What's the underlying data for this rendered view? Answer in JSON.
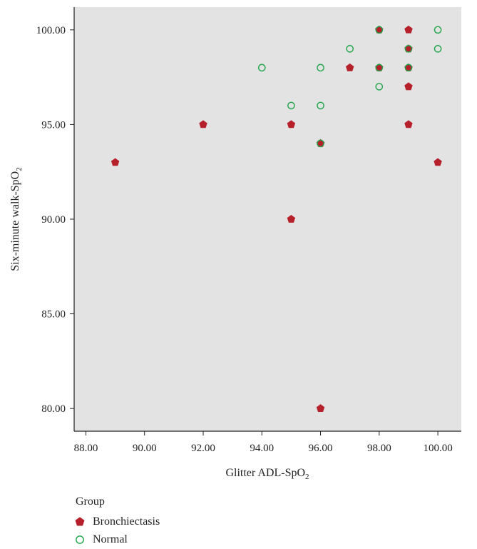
{
  "chart_data": {
    "type": "scatter",
    "xlabel_main": "Glitter ADL-SpO",
    "xlabel_sub": "2",
    "ylabel_main": "Six-minute walk-SpO",
    "ylabel_sub": "2",
    "xlim": [
      87.6,
      100.8
    ],
    "ylim": [
      78.8,
      101.2
    ],
    "x_ticks": [
      "88.00",
      "90.00",
      "92.00",
      "94.00",
      "96.00",
      "98.00",
      "100.00"
    ],
    "y_ticks": [
      "100.00",
      "95.00",
      "90.00",
      "85.00",
      "80.00"
    ],
    "grid": false,
    "legend_placement": "bottom-left",
    "legend_title": "Group",
    "series": [
      {
        "name": "Bronchiectasis",
        "marker": "pentagon",
        "color": "#b5202a",
        "points": [
          [
            89,
            93
          ],
          [
            92,
            95
          ],
          [
            95,
            95
          ],
          [
            95,
            90
          ],
          [
            96,
            94
          ],
          [
            96,
            80
          ],
          [
            97,
            98
          ],
          [
            98,
            100
          ],
          [
            98,
            98
          ],
          [
            99,
            100
          ],
          [
            99,
            99
          ],
          [
            99,
            98
          ],
          [
            99,
            97
          ],
          [
            99,
            95
          ],
          [
            100,
            93
          ]
        ]
      },
      {
        "name": "Normal",
        "marker": "circle",
        "color": "#1fa44a",
        "points": [
          [
            94,
            98
          ],
          [
            95,
            96
          ],
          [
            96,
            98
          ],
          [
            96,
            96
          ],
          [
            96,
            94
          ],
          [
            97,
            99
          ],
          [
            98,
            100
          ],
          [
            98,
            98
          ],
          [
            98,
            97
          ],
          [
            99,
            99
          ],
          [
            99,
            98
          ],
          [
            100,
            100
          ],
          [
            100,
            99
          ]
        ]
      }
    ]
  }
}
